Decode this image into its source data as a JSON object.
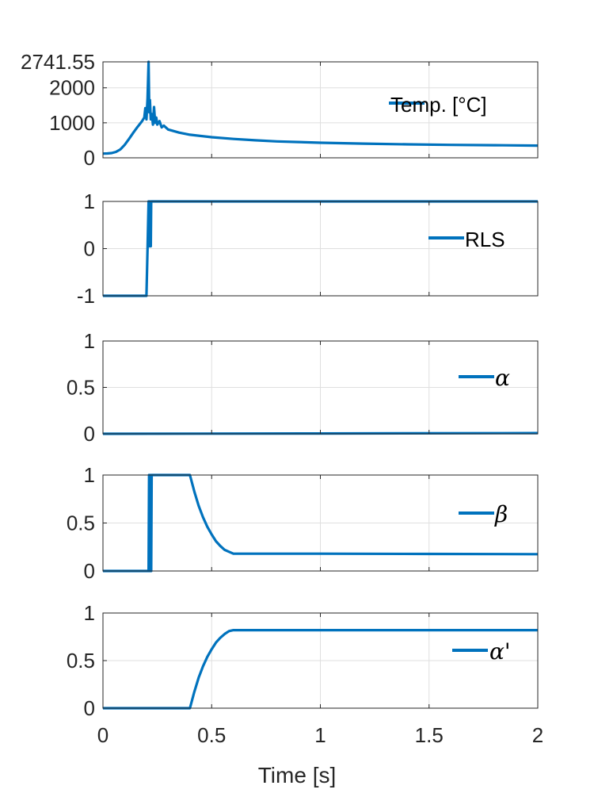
{
  "chart_data": [
    {
      "type": "line",
      "legend": "Temp. [°C]",
      "legend_math": false,
      "legend_location": "top-right",
      "xlim": [
        0,
        2
      ],
      "ylim": [
        0,
        2741.55
      ],
      "yticks": [
        0,
        1000,
        2000,
        2741.55
      ],
      "ytick_labels": [
        "0",
        "1000",
        "2000",
        "2741.55"
      ],
      "grid": true,
      "color": "#0072BD",
      "series": [
        {
          "x": [
            0,
            0.02,
            0.04,
            0.06,
            0.08,
            0.1,
            0.12,
            0.14,
            0.16,
            0.18,
            0.19,
            0.195,
            0.2,
            0.205,
            0.21,
            0.213,
            0.216,
            0.22,
            0.225,
            0.23,
            0.235,
            0.24,
            0.245,
            0.25,
            0.26,
            0.27,
            0.28,
            0.3,
            0.35,
            0.4,
            0.5,
            0.6,
            0.7,
            0.8,
            0.9,
            1.0,
            1.2,
            1.4,
            1.6,
            1.8,
            2.0
          ],
          "values": [
            120,
            125,
            135,
            170,
            240,
            370,
            540,
            720,
            890,
            1050,
            1150,
            1420,
            1100,
            1700,
            2741.55,
            1300,
            1650,
            1100,
            1250,
            950,
            1450,
            1000,
            1150,
            950,
            1050,
            870,
            920,
            810,
            720,
            660,
            590,
            540,
            500,
            470,
            450,
            430,
            405,
            385,
            370,
            360,
            350
          ]
        }
      ]
    },
    {
      "type": "line",
      "legend": "RLS",
      "legend_math": false,
      "legend_location": "right",
      "xlim": [
        0,
        2
      ],
      "ylim": [
        -1,
        1
      ],
      "yticks": [
        -1,
        0,
        1
      ],
      "ytick_labels": [
        "-1",
        "0",
        "1"
      ],
      "grid": true,
      "color": "#0072BD",
      "series": [
        {
          "x": [
            0,
            0.2,
            0.205,
            0.21,
            0.212,
            0.214,
            0.216,
            0.218,
            0.22,
            0.222,
            0.224,
            2.0
          ],
          "values": [
            -1,
            -1,
            0,
            1,
            0.05,
            1,
            0.05,
            1,
            0.05,
            1,
            1,
            1
          ]
        }
      ]
    },
    {
      "type": "line",
      "legend": "α",
      "legend_math": true,
      "legend_location": "right",
      "xlim": [
        0,
        2
      ],
      "ylim": [
        0,
        1
      ],
      "yticks": [
        0,
        0.5,
        1
      ],
      "ytick_labels": [
        "0",
        "0.5",
        "1"
      ],
      "grid": true,
      "color": "#0072BD",
      "series": [
        {
          "x": [
            0,
            1.0,
            2.0
          ],
          "values": [
            0,
            0.003,
            0.008
          ]
        }
      ]
    },
    {
      "type": "line",
      "legend": "β",
      "legend_math": true,
      "legend_location": "right",
      "xlim": [
        0,
        2
      ],
      "ylim": [
        0,
        1
      ],
      "yticks": [
        0,
        0.5,
        1
      ],
      "ytick_labels": [
        "0",
        "0.5",
        "1"
      ],
      "grid": true,
      "color": "#0072BD",
      "series": [
        {
          "x": [
            0,
            0.21,
            0.212,
            0.214,
            0.216,
            0.218,
            0.22,
            0.222,
            0.224,
            0.226,
            0.4,
            0.42,
            0.44,
            0.46,
            0.48,
            0.5,
            0.52,
            0.54,
            0.56,
            0.58,
            0.6,
            1.0,
            1.5,
            2.0
          ],
          "values": [
            0,
            0,
            1,
            0,
            1,
            0,
            1,
            0,
            1,
            1,
            1,
            0.83,
            0.68,
            0.56,
            0.46,
            0.38,
            0.31,
            0.26,
            0.22,
            0.2,
            0.18,
            0.18,
            0.178,
            0.175
          ]
        }
      ]
    },
    {
      "type": "line",
      "legend": "α'",
      "legend_math": true,
      "legend_location": "right",
      "xlim": [
        0,
        2
      ],
      "ylim": [
        0,
        1
      ],
      "yticks": [
        0,
        0.5,
        1
      ],
      "ytick_labels": [
        "0",
        "0.5",
        "1"
      ],
      "xticks": [
        0,
        0.5,
        1,
        1.5,
        2
      ],
      "xtick_labels": [
        "0",
        "0.5",
        "1",
        "1.5",
        "2"
      ],
      "xlabel": "Time [s]",
      "grid": true,
      "color": "#0072BD",
      "series": [
        {
          "x": [
            0,
            0.4,
            0.42,
            0.44,
            0.46,
            0.48,
            0.5,
            0.52,
            0.54,
            0.56,
            0.58,
            0.6,
            1.0,
            1.5,
            2.0
          ],
          "values": [
            0,
            0,
            0.17,
            0.32,
            0.44,
            0.54,
            0.62,
            0.69,
            0.74,
            0.78,
            0.81,
            0.82,
            0.82,
            0.82,
            0.82
          ]
        }
      ]
    }
  ]
}
